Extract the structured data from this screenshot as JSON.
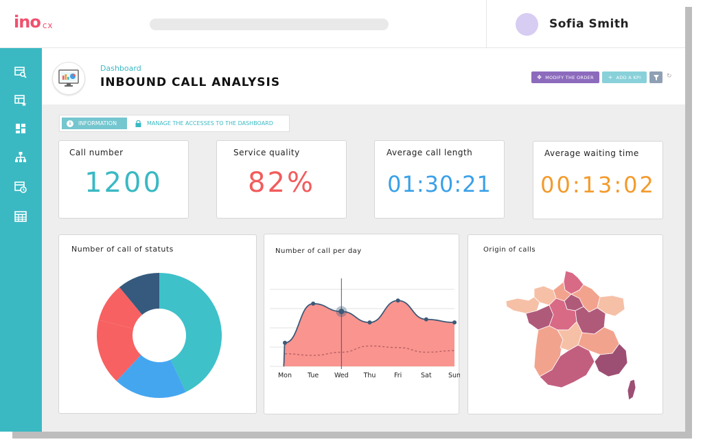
{
  "app": {
    "logo": {
      "mark_a": "ino",
      "mark_b": "",
      "suffix": "cx"
    },
    "user": {
      "name": "Sofia Smith"
    }
  },
  "sidebar": {
    "items": [
      {
        "icon": "search-table-icon"
      },
      {
        "icon": "table-star-icon"
      },
      {
        "icon": "dashboard-grid-icon"
      },
      {
        "icon": "hierarchy-icon"
      },
      {
        "icon": "calendar-clock-icon"
      },
      {
        "icon": "table-icon"
      }
    ]
  },
  "header": {
    "breadcrumb": "Dashboard",
    "title": "INBOUND CALL ANALYSIS",
    "buttons": {
      "modify": "MODIFY THE ORDER",
      "add_kpi": "ADD A KPI"
    }
  },
  "tabs": {
    "information": "INFORMATION",
    "access": "MANAGE THE ACCESSES TO THE DASHBOARD"
  },
  "kpis": [
    {
      "label": "Call number",
      "value": "1200",
      "color": "#3ab9c3"
    },
    {
      "label": "Service quality",
      "value": "82%",
      "color": "#f25c5c"
    },
    {
      "label": "Average call length",
      "value": "01:30:21",
      "color": "#3aa0e8"
    },
    {
      "label": "Average waiting time",
      "value": "00:13:02",
      "color": "#f39a2b"
    }
  ],
  "charts": {
    "statuts_title": "Number of call of statuts",
    "per_day_title": "Number of call per day",
    "origin_title": "Origin of calls"
  },
  "chart_data": [
    {
      "type": "pie",
      "title": "Number of call of statuts",
      "values": [
        43,
        19,
        17,
        10,
        11
      ],
      "colors": [
        "#3ec1c9",
        "#45a6f0",
        "#f86161",
        "#f86161",
        "#355a7d"
      ]
    },
    {
      "type": "area",
      "title": "Number of call per day",
      "categories": [
        "Mon",
        "Tue",
        "Wed",
        "Thu",
        "Fri",
        "Sat",
        "Sun"
      ],
      "series": [
        {
          "values": [
            1.5,
            4.0,
            3.5,
            2.8,
            4.2,
            3.0,
            2.8
          ]
        },
        {
          "values": [
            0.8,
            0.7,
            0.9,
            1.3,
            1.2,
            0.9,
            1.0
          ]
        }
      ],
      "highlight_index": 2
    }
  ],
  "colors": {
    "accent": "#3ab9c3",
    "sidebar": "#3ab9c3",
    "area_fill": "#f9948e",
    "map_dark": "#b05a7a",
    "map_mid": "#d87287",
    "map_light": "#f2a38e",
    "map_pale": "#f6c0a7"
  }
}
